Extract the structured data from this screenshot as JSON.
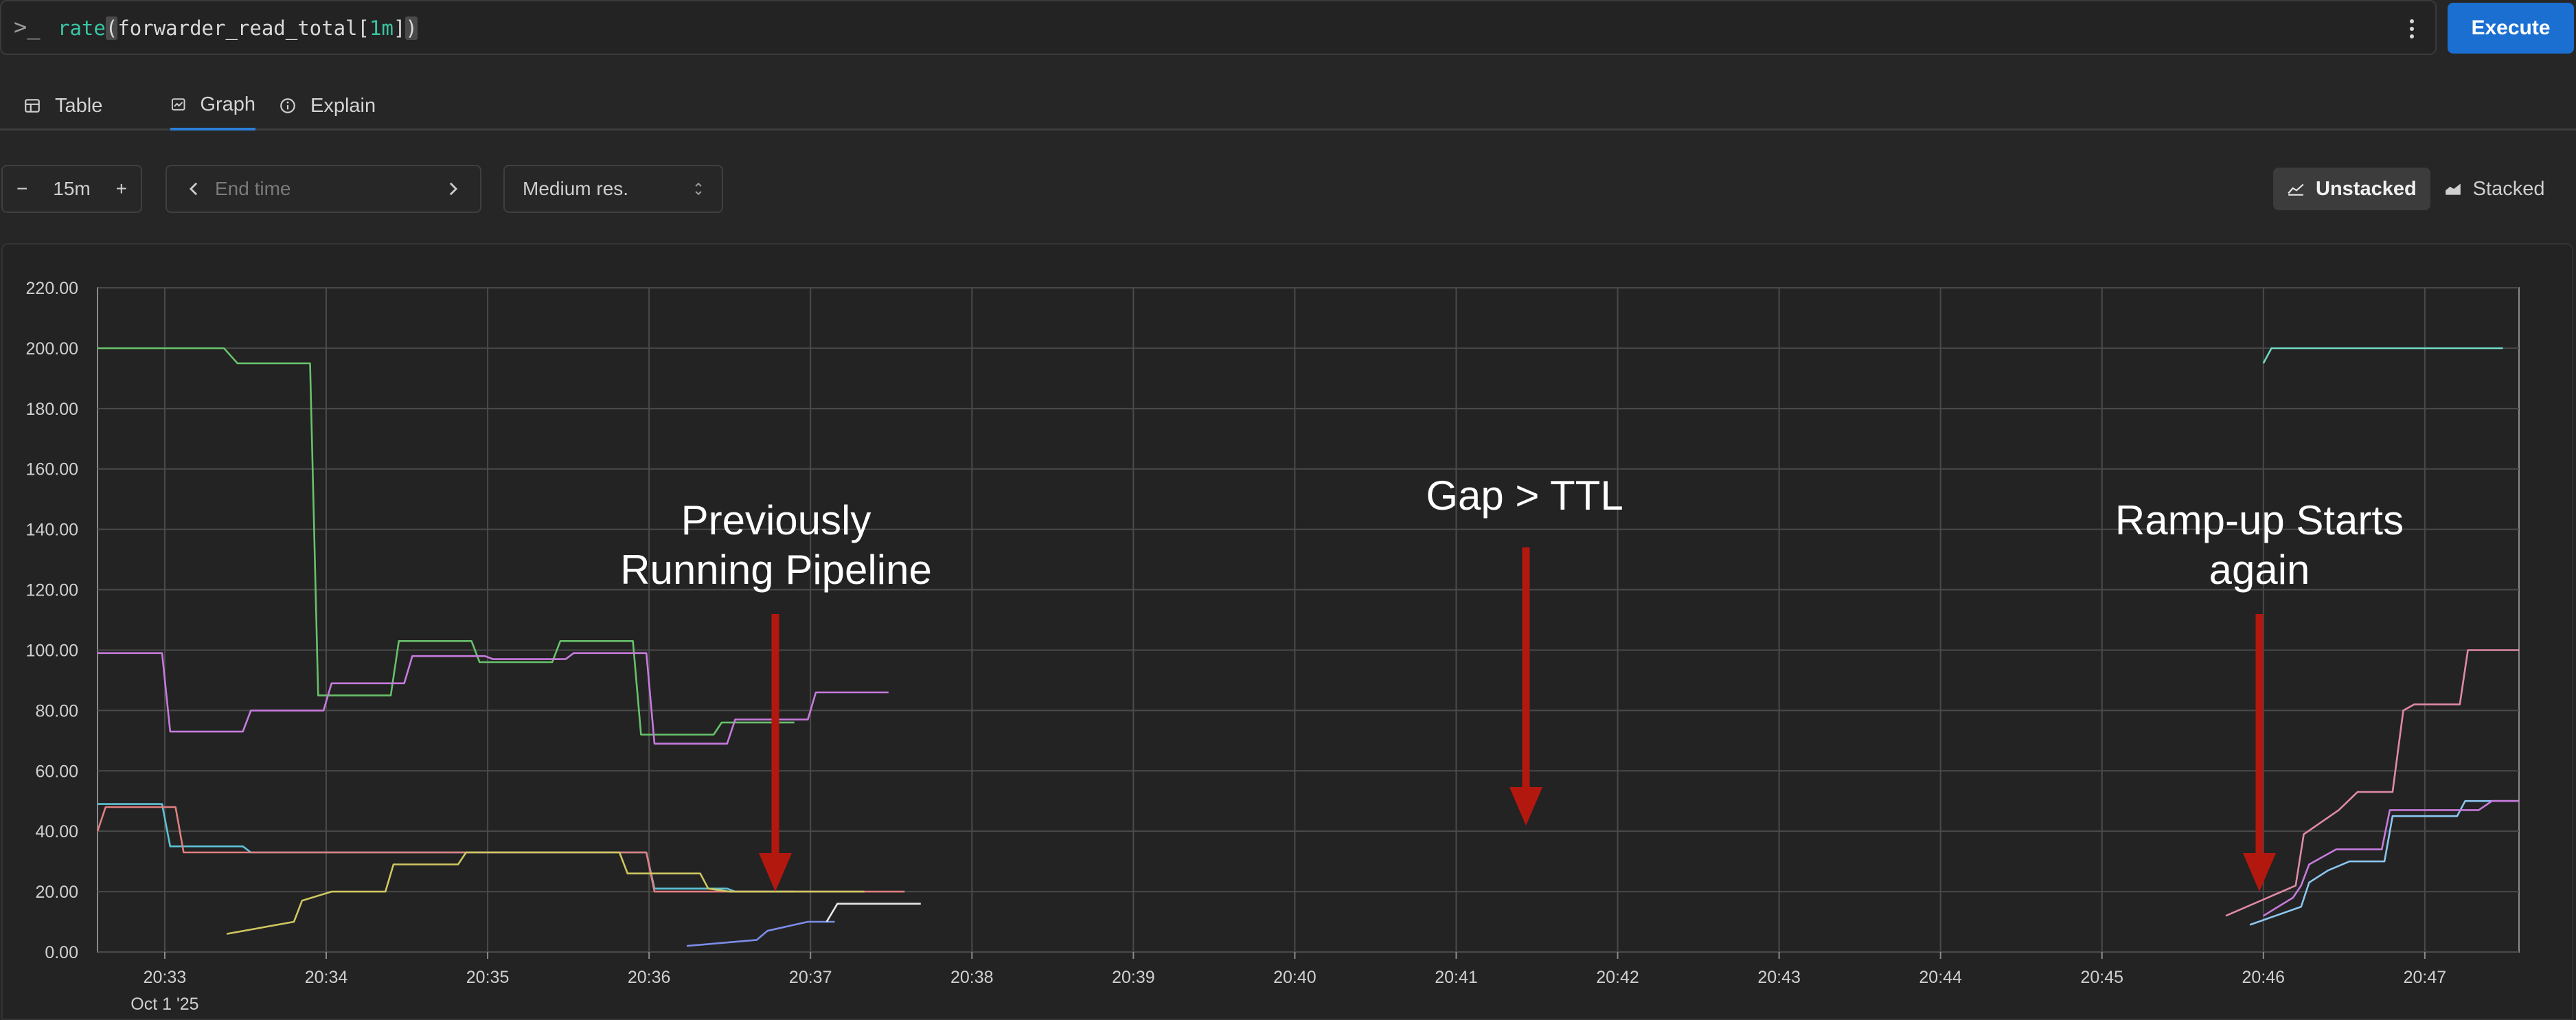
{
  "query": {
    "prompt_icon": "terminal-prompt-icon",
    "function": "rate",
    "open_paren": "(",
    "metric": "forwarder_read_total",
    "range_open": "[",
    "range_value": "1m",
    "range_close": "]",
    "close_paren": ")",
    "execute_label": "Execute"
  },
  "tabs": [
    {
      "label": "Table",
      "icon": "table-icon",
      "active": false
    },
    {
      "label": "Graph",
      "icon": "graph-icon",
      "active": true
    },
    {
      "label": "Explain",
      "icon": "info-icon",
      "active": false
    }
  ],
  "controls": {
    "range_minus": "−",
    "range_value": "15m",
    "range_plus": "+",
    "end_time_placeholder": "End time",
    "resolution": "Medium res.",
    "unstacked_label": "Unstacked",
    "stacked_label": "Stacked"
  },
  "colors": {
    "accent": "#1b6fd1",
    "annotation_arrow": "#b3180f",
    "green": "#68c16b",
    "magenta": "#c77bdd",
    "cyan": "#5ec3d6",
    "salmon": "#e07f7f",
    "yellow": "#cfc761",
    "blue": "#7b8de8",
    "teal": "#6fd6c1",
    "white": "#e8e8e8",
    "pink": "#e08aa8",
    "light_blue": "#8cc6f0"
  },
  "annotations": [
    {
      "text_line1": "Previously",
      "text_line2": "Running Pipeline"
    },
    {
      "text_line1": "Gap > TTL",
      "text_line2": ""
    },
    {
      "text_line1": "Ramp-up Starts",
      "text_line2": "again"
    }
  ],
  "chart_data": {
    "type": "line",
    "stacked": false,
    "grid": true,
    "legend": "none",
    "ylim": [
      0,
      220
    ],
    "yticks": [
      "0.00",
      "20.00",
      "40.00",
      "60.00",
      "80.00",
      "100.00",
      "120.00",
      "140.00",
      "160.00",
      "180.00",
      "200.00",
      "220.00"
    ],
    "xlim": [
      "20:32:35",
      "20:47:35"
    ],
    "xticks": [
      "20:33",
      "20:34",
      "20:35",
      "20:36",
      "20:37",
      "20:38",
      "20:39",
      "20:40",
      "20:41",
      "20:42",
      "20:43",
      "20:44",
      "20:45",
      "20:46",
      "20:47"
    ],
    "date_label": "Oct 1 '25",
    "series": [
      {
        "color": "green",
        "points": [
          [
            "20:32:35",
            200
          ],
          [
            "20:33:22",
            200
          ],
          [
            "20:33:27",
            195
          ],
          [
            "20:33:54",
            195
          ],
          [
            "20:33:57",
            85
          ],
          [
            "20:34:24",
            85
          ],
          [
            "20:34:27",
            103
          ],
          [
            "20:34:54",
            103
          ],
          [
            "20:34:57",
            96
          ],
          [
            "20:35:24",
            96
          ],
          [
            "20:35:27",
            103
          ],
          [
            "20:35:54",
            103
          ],
          [
            "20:35:57",
            72
          ],
          [
            "20:36:24",
            72
          ],
          [
            "20:36:27",
            76
          ],
          [
            "20:36:54",
            76
          ]
        ]
      },
      {
        "color": "magenta",
        "points": [
          [
            "20:32:35",
            99
          ],
          [
            "20:32:59",
            99
          ],
          [
            "20:33:02",
            73
          ],
          [
            "20:33:29",
            73
          ],
          [
            "20:33:32",
            80
          ],
          [
            "20:33:59",
            80
          ],
          [
            "20:34:02",
            89
          ],
          [
            "20:34:29",
            89
          ],
          [
            "20:34:32",
            98
          ],
          [
            "20:34:59",
            98
          ],
          [
            "20:35:02",
            97
          ],
          [
            "20:35:29",
            97
          ],
          [
            "20:35:32",
            99
          ],
          [
            "20:35:59",
            99
          ],
          [
            "20:36:02",
            69
          ],
          [
            "20:36:29",
            69
          ],
          [
            "20:36:32",
            77
          ],
          [
            "20:36:59",
            77
          ],
          [
            "20:37:02",
            86
          ],
          [
            "20:37:29",
            86
          ]
        ]
      },
      {
        "color": "cyan",
        "points": [
          [
            "20:32:35",
            49
          ],
          [
            "20:32:59",
            49
          ],
          [
            "20:33:02",
            35
          ],
          [
            "20:33:29",
            35
          ],
          [
            "20:33:32",
            33
          ],
          [
            "20:35:59",
            33
          ],
          [
            "20:36:02",
            21
          ],
          [
            "20:36:29",
            21
          ],
          [
            "20:36:32",
            20
          ],
          [
            "20:36:54",
            20
          ]
        ]
      },
      {
        "color": "salmon",
        "points": [
          [
            "20:32:35",
            40
          ],
          [
            "20:32:38",
            48
          ],
          [
            "20:33:04",
            48
          ],
          [
            "20:33:07",
            33
          ],
          [
            "20:35:59",
            33
          ],
          [
            "20:36:02",
            20
          ],
          [
            "20:37:35",
            20
          ]
        ]
      },
      {
        "color": "yellow",
        "points": [
          [
            "20:33:23",
            6
          ],
          [
            "20:33:48",
            10
          ],
          [
            "20:33:51",
            17
          ],
          [
            "20:34:02",
            20
          ],
          [
            "20:34:22",
            20
          ],
          [
            "20:34:25",
            29
          ],
          [
            "20:34:49",
            29
          ],
          [
            "20:34:52",
            33
          ],
          [
            "20:35:49",
            33
          ],
          [
            "20:35:52",
            26
          ],
          [
            "20:36:19",
            26
          ],
          [
            "20:36:22",
            21
          ],
          [
            "20:36:30",
            20
          ],
          [
            "20:37:20",
            20
          ]
        ]
      },
      {
        "color": "blue",
        "points": [
          [
            "20:36:14",
            2
          ],
          [
            "20:36:40",
            4
          ],
          [
            "20:36:44",
            7
          ],
          [
            "20:36:59",
            10
          ],
          [
            "20:37:09",
            10
          ]
        ]
      },
      {
        "color": "white",
        "points": [
          [
            "20:37:06",
            10
          ],
          [
            "20:37:10",
            16
          ],
          [
            "20:37:41",
            16
          ]
        ]
      },
      {
        "color": "teal",
        "points": [
          [
            "20:46:00",
            195
          ],
          [
            "20:46:03",
            200
          ],
          [
            "20:47:29",
            200
          ]
        ]
      },
      {
        "color": "pink",
        "points": [
          [
            "20:45:46",
            12
          ],
          [
            "20:46:12",
            22
          ],
          [
            "20:46:15",
            39
          ],
          [
            "20:46:28",
            47
          ],
          [
            "20:46:35",
            53
          ],
          [
            "20:46:48",
            53
          ],
          [
            "20:46:52",
            80
          ],
          [
            "20:46:56",
            82
          ],
          [
            "20:47:13",
            82
          ],
          [
            "20:47:16",
            100
          ],
          [
            "20:47:35",
            100
          ]
        ]
      },
      {
        "color": "light_blue",
        "points": [
          [
            "20:45:55",
            9
          ],
          [
            "20:46:14",
            15
          ],
          [
            "20:46:17",
            23
          ],
          [
            "20:46:24",
            27
          ],
          [
            "20:46:32",
            30
          ],
          [
            "20:46:45",
            30
          ],
          [
            "20:46:48",
            45
          ],
          [
            "20:47:12",
            45
          ],
          [
            "20:47:15",
            50
          ],
          [
            "20:47:35",
            50
          ]
        ]
      },
      {
        "color": "magenta",
        "points": [
          [
            "20:46:00",
            12
          ],
          [
            "20:46:11",
            18
          ],
          [
            "20:46:14",
            22
          ],
          [
            "20:46:17",
            29
          ],
          [
            "20:46:27",
            34
          ],
          [
            "20:46:44",
            34
          ],
          [
            "20:46:47",
            47
          ],
          [
            "20:47:20",
            47
          ],
          [
            "20:47:25",
            50
          ],
          [
            "20:47:35",
            50
          ]
        ]
      }
    ]
  }
}
